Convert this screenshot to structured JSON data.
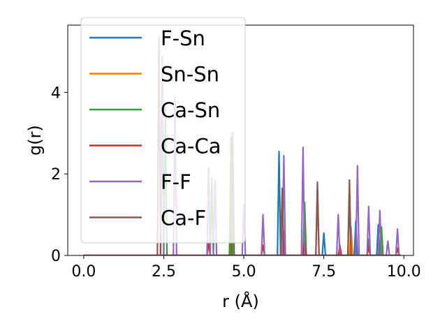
{
  "chart_data": {
    "type": "line",
    "title": "",
    "xlabel": "r (Å)",
    "ylabel": "g(r)",
    "xlim": [
      -0.5,
      10.3
    ],
    "ylim": [
      0,
      5.65
    ],
    "xticks": [
      0.0,
      2.5,
      5.0,
      7.5,
      10.0
    ],
    "xtick_labels": [
      "0.0",
      "2.5",
      "5.0",
      "7.5",
      "10.0"
    ],
    "yticks": [
      0,
      2,
      4
    ],
    "ytick_labels": [
      "0",
      "2",
      "4"
    ],
    "grid": false,
    "legend_position": "top-left",
    "series": [
      {
        "name": "F-Sn",
        "color": "#1f77b4",
        "peaks": [
          [
            2.45,
            4.4
          ],
          [
            6.1,
            2.55
          ],
          [
            7.5,
            0.55
          ],
          [
            8.3,
            1.45
          ],
          [
            8.5,
            0.85
          ],
          [
            9.2,
            0.75
          ]
        ]
      },
      {
        "name": "Sn-Sn",
        "color": "#ff7f0e",
        "peaks": [
          [
            4.6,
            1.2
          ],
          [
            6.25,
            0.6
          ],
          [
            8.35,
            0.7
          ]
        ]
      },
      {
        "name": "Ca-Sn",
        "color": "#2ca02c",
        "peaks": [
          [
            2.55,
            3.6
          ],
          [
            4.0,
            1.9
          ],
          [
            4.6,
            2.9
          ],
          [
            6.9,
            1.3
          ],
          [
            8.9,
            0.4
          ],
          [
            9.3,
            0.7
          ]
        ]
      },
      {
        "name": "Ca-Ca",
        "color": "#d62728",
        "peaks": [
          [
            3.9,
            0.3
          ],
          [
            5.6,
            0.25
          ],
          [
            6.9,
            0.35
          ],
          [
            8.0,
            0.25
          ],
          [
            8.9,
            0.2
          ],
          [
            9.8,
            0.18
          ]
        ]
      },
      {
        "name": "F-F",
        "color": "#9467bd",
        "peaks": [
          [
            2.45,
            4.9
          ],
          [
            2.85,
            3.9
          ],
          [
            3.9,
            2.15
          ],
          [
            4.1,
            1.85
          ],
          [
            5.0,
            1.25
          ],
          [
            5.6,
            1.0
          ],
          [
            6.25,
            2.45
          ],
          [
            6.85,
            2.65
          ],
          [
            7.3,
            1.6
          ],
          [
            7.95,
            1.0
          ],
          [
            8.55,
            2.2
          ],
          [
            8.9,
            1.2
          ],
          [
            9.25,
            1.1
          ],
          [
            9.5,
            0.35
          ],
          [
            9.8,
            0.65
          ]
        ]
      },
      {
        "name": "Ca-F",
        "color": "#8c564b",
        "peaks": [
          [
            2.35,
            5.35
          ],
          [
            4.65,
            3.0
          ],
          [
            6.2,
            1.65
          ],
          [
            7.3,
            1.8
          ],
          [
            8.3,
            1.85
          ]
        ]
      }
    ]
  }
}
